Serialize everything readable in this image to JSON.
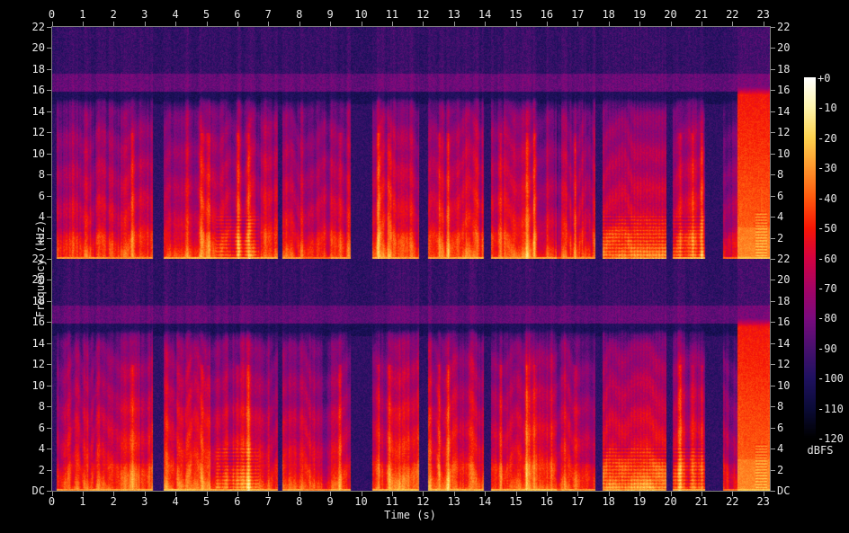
{
  "app": {
    "type": "stereo-audio-spectrogram",
    "channels": 2
  },
  "axes": {
    "time_label": "Time (s)",
    "freq_label": "Frequency (kHz)",
    "level_label": "dBFS",
    "time_ticks": [
      "0",
      "1",
      "2",
      "3",
      "4",
      "5",
      "6",
      "7",
      "8",
      "9",
      "10",
      "11",
      "12",
      "13",
      "14",
      "15",
      "16",
      "17",
      "18",
      "19",
      "20",
      "21",
      "22",
      "23"
    ],
    "freq_ticks_channel1": [
      "22",
      "20",
      "18",
      "16",
      "14",
      "12",
      "10",
      "8",
      "6",
      "4",
      "2"
    ],
    "freq_ticks_channel2": [
      "22",
      "20",
      "18",
      "16",
      "14",
      "12",
      "10",
      "8",
      "6",
      "4",
      "2",
      "DC"
    ],
    "level_ticks": [
      "+0",
      "-10",
      "-20",
      "-30",
      "-40",
      "-50",
      "-60",
      "-70",
      "-80",
      "-90",
      "-100",
      "-110",
      "-120"
    ]
  },
  "chart_data": {
    "type": "heatmap",
    "subtype": "spectrogram",
    "title": "",
    "xlabel": "Time (s)",
    "ylabel": "Frequency (kHz)",
    "zlabel": "dBFS",
    "x_range_s": [
      0,
      23.25
    ],
    "y_range_khz": [
      0,
      22
    ],
    "z_range_dbfs": [
      -120,
      0
    ],
    "channels": 2,
    "grid": false,
    "colorbar_position": "right",
    "palette": [
      [
        0,
        "#ffffff"
      ],
      [
        -10,
        "#fff5ac"
      ],
      [
        -20,
        "#ffd34f"
      ],
      [
        -30,
        "#ff962d"
      ],
      [
        -40,
        "#ff5a0e"
      ],
      [
        -50,
        "#f71605"
      ],
      [
        -60,
        "#d40241"
      ],
      [
        -70,
        "#a50365"
      ],
      [
        -80,
        "#7b0a7e"
      ],
      [
        -90,
        "#48106e"
      ],
      [
        -100,
        "#1f1160"
      ],
      [
        -110,
        "#0b0b38"
      ],
      [
        -120,
        "#000000"
      ]
    ],
    "noise_floor": {
      "upper_navy_band_khz": [
        17.6,
        22
      ],
      "bright_purple_band_khz": [
        15.9,
        17.6
      ],
      "dark_shelf_khz": [
        14.7,
        15.9
      ],
      "lowpass_cutoff_khz": 14.8
    },
    "segments": [
      [
        0.0,
        0.15,
        "quiet",
        0,
        0
      ],
      [
        0.15,
        2.2,
        "speech",
        0.8,
        0
      ],
      [
        2.2,
        3.25,
        "speech",
        0.92,
        0
      ],
      [
        3.25,
        3.6,
        "quiet",
        0,
        0
      ],
      [
        3.6,
        5.3,
        "speech",
        1.0,
        0
      ],
      [
        5.3,
        6.7,
        "speech",
        0.95,
        1
      ],
      [
        6.7,
        7.3,
        "speech",
        0.9,
        0
      ],
      [
        7.3,
        7.45,
        "quiet",
        0,
        0
      ],
      [
        7.45,
        8.1,
        "speech",
        0.9,
        0
      ],
      [
        8.1,
        9.0,
        "speech",
        0.62,
        0
      ],
      [
        9.0,
        9.65,
        "speech",
        0.95,
        0
      ],
      [
        9.65,
        10.35,
        "quiet",
        0,
        0
      ],
      [
        10.35,
        11.85,
        "speech",
        1.0,
        0
      ],
      [
        11.85,
        12.15,
        "quiet",
        0,
        0
      ],
      [
        12.15,
        13.95,
        "speech",
        1.0,
        0
      ],
      [
        13.95,
        14.2,
        "quiet",
        0,
        0
      ],
      [
        14.2,
        16.3,
        "speech",
        1.0,
        0
      ],
      [
        16.3,
        16.45,
        "speech",
        0.55,
        0
      ],
      [
        16.45,
        17.55,
        "speech",
        0.9,
        0
      ],
      [
        17.55,
        17.8,
        "quiet",
        0,
        0
      ],
      [
        17.8,
        19.85,
        "block",
        0.85,
        1
      ],
      [
        19.85,
        20.05,
        "quiet",
        0,
        0
      ],
      [
        20.05,
        21.1,
        "speech",
        1.0,
        1
      ],
      [
        21.1,
        21.7,
        "quiet",
        0,
        0
      ],
      [
        21.7,
        22.15,
        "speech",
        0.6,
        0
      ],
      [
        22.15,
        23.25,
        "loud",
        1.0,
        1
      ]
    ],
    "bright_columns_s": [
      2.6,
      4.85,
      5.05,
      6.0,
      6.35,
      9.3,
      10.55,
      10.9,
      12.5,
      12.8,
      14.5,
      15.35,
      15.6,
      16.9,
      20.3,
      20.7,
      21.0
    ]
  }
}
